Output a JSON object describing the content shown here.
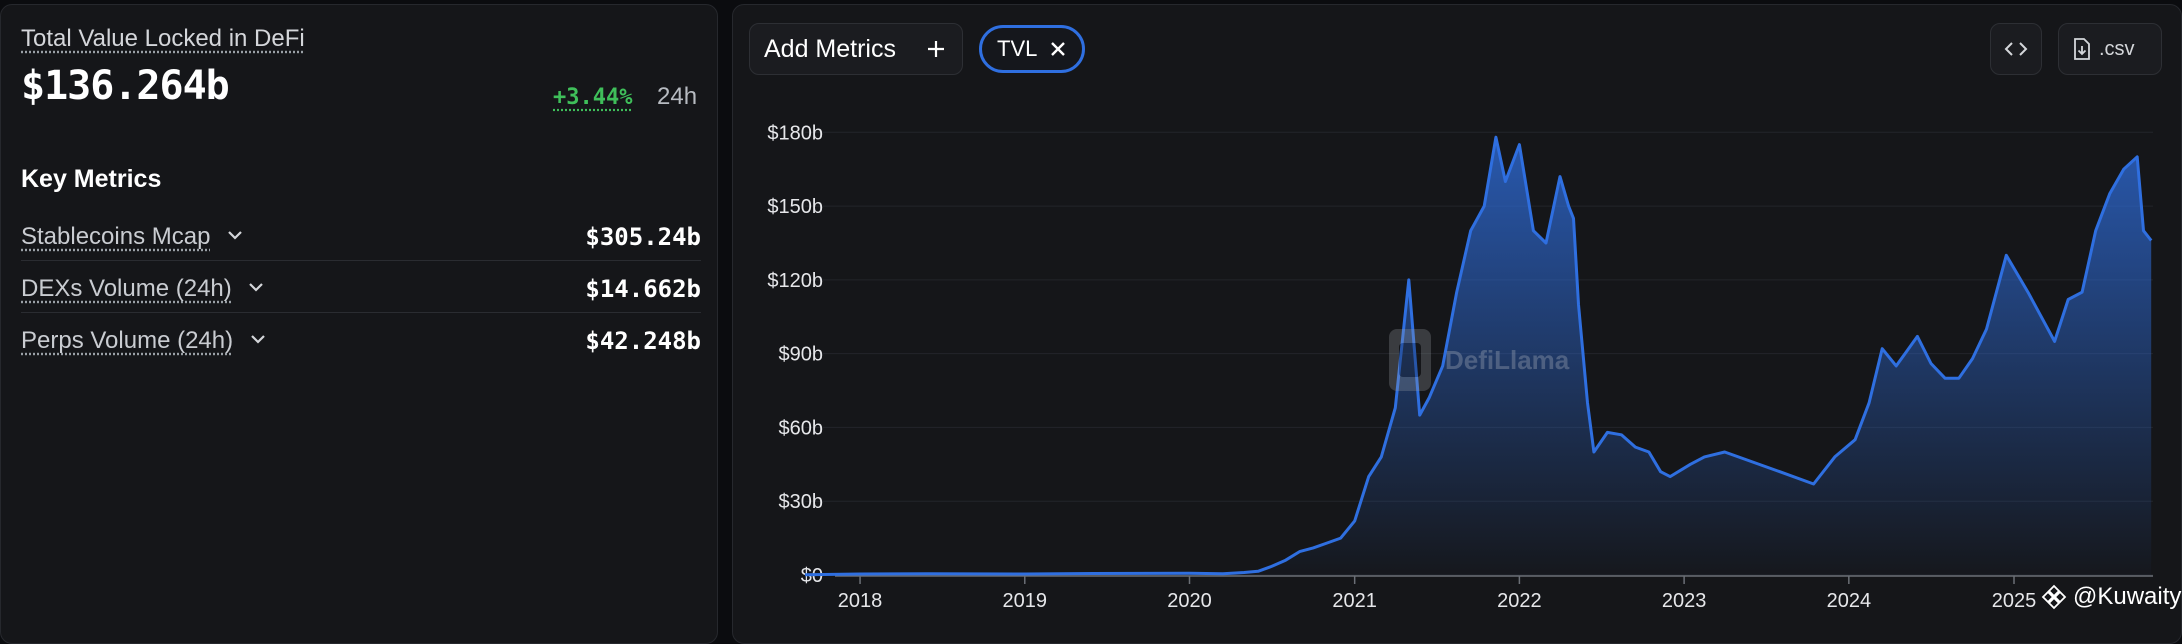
{
  "overview": {
    "title": "Total Value Locked in DeFi",
    "value": "$136.264b",
    "change": "+3.44%",
    "period": "24h"
  },
  "key_metrics": {
    "title": "Key Metrics",
    "items": [
      {
        "label": "Stablecoins Mcap",
        "value": "$305.24b"
      },
      {
        "label": "DEXs Volume (24h)",
        "value": "$14.662b"
      },
      {
        "label": "Perps Volume (24h)",
        "value": "$42.248b"
      }
    ]
  },
  "toolbar": {
    "add_metrics_label": "Add Metrics",
    "chip_label": "TVL",
    "csv_label": ".csv"
  },
  "watermark": "DefiLlama",
  "credit": "@Kuwaity",
  "colors": {
    "line": "#2f6fe0",
    "positive": "#3fbf5a",
    "panel": "#151619"
  },
  "chart_data": {
    "type": "area",
    "series": [
      {
        "values": [
          [
            "2017-09-01",
            0.1
          ],
          [
            "2018-01-01",
            0.4
          ],
          [
            "2018-06-01",
            0.5
          ],
          [
            "2019-01-01",
            0.4
          ],
          [
            "2019-06-01",
            0.6
          ],
          [
            "2020-01-01",
            0.7
          ],
          [
            "2020-03-15",
            0.5
          ],
          [
            "2020-05-01",
            1.0
          ],
          [
            "2020-06-01",
            1.5
          ],
          [
            "2020-07-01",
            3.5
          ],
          [
            "2020-08-01",
            6.0
          ],
          [
            "2020-09-01",
            9.5
          ],
          [
            "2020-10-01",
            11.0
          ],
          [
            "2020-11-01",
            13.0
          ],
          [
            "2020-12-01",
            15.0
          ],
          [
            "2021-01-01",
            22.0
          ],
          [
            "2021-02-01",
            40.0
          ],
          [
            "2021-03-01",
            48.0
          ],
          [
            "2021-04-01",
            68.0
          ],
          [
            "2021-05-01",
            120.0
          ],
          [
            "2021-05-25",
            65.0
          ],
          [
            "2021-06-15",
            72.0
          ],
          [
            "2021-07-15",
            85.0
          ],
          [
            "2021-08-15",
            115.0
          ],
          [
            "2021-09-15",
            140.0
          ],
          [
            "2021-10-15",
            150.0
          ],
          [
            "2021-11-10",
            178.0
          ],
          [
            "2021-12-01",
            160.0
          ],
          [
            "2022-01-01",
            175.0
          ],
          [
            "2022-02-01",
            140.0
          ],
          [
            "2022-03-01",
            135.0
          ],
          [
            "2022-04-01",
            162.0
          ],
          [
            "2022-04-20",
            150.0
          ],
          [
            "2022-05-01",
            145.0
          ],
          [
            "2022-05-12",
            110.0
          ],
          [
            "2022-06-01",
            70.0
          ],
          [
            "2022-06-15",
            50.0
          ],
          [
            "2022-07-15",
            58.0
          ],
          [
            "2022-08-15",
            57.0
          ],
          [
            "2022-09-15",
            52.0
          ],
          [
            "2022-10-15",
            50.0
          ],
          [
            "2022-11-10",
            42.0
          ],
          [
            "2022-12-01",
            40.0
          ],
          [
            "2023-01-15",
            45.0
          ],
          [
            "2023-02-15",
            48.0
          ],
          [
            "2023-04-01",
            50.0
          ],
          [
            "2023-06-01",
            46.0
          ],
          [
            "2023-08-01",
            42.0
          ],
          [
            "2023-10-15",
            37.0
          ],
          [
            "2023-12-01",
            48.0
          ],
          [
            "2024-01-15",
            55.0
          ],
          [
            "2024-02-15",
            70.0
          ],
          [
            "2024-03-15",
            92.0
          ],
          [
            "2024-04-15",
            85.0
          ],
          [
            "2024-06-01",
            97.0
          ],
          [
            "2024-07-01",
            86.0
          ],
          [
            "2024-08-01",
            80.0
          ],
          [
            "2024-09-01",
            80.0
          ],
          [
            "2024-10-01",
            88.0
          ],
          [
            "2024-11-01",
            100.0
          ],
          [
            "2024-12-15",
            130.0
          ],
          [
            "2025-02-01",
            115.0
          ],
          [
            "2025-04-01",
            95.0
          ],
          [
            "2025-05-01",
            112.0
          ],
          [
            "2025-06-01",
            115.0
          ],
          [
            "2025-07-01",
            140.0
          ],
          [
            "2025-08-01",
            155.0
          ],
          [
            "2025-09-01",
            165.0
          ],
          [
            "2025-10-01",
            170.0
          ],
          [
            "2025-10-15",
            140.0
          ],
          [
            "2025-11-01",
            136.0
          ]
        ]
      }
    ],
    "y_ticks": [
      "$180b",
      "$150b",
      "$120b",
      "$90b",
      "$60b",
      "$30b",
      "$0"
    ],
    "y_tick_values": [
      180,
      150,
      120,
      90,
      60,
      30,
      0
    ],
    "x_ticks": [
      "2018",
      "2019",
      "2020",
      "2021",
      "2022",
      "2023",
      "2024",
      "2025"
    ],
    "xlim": [
      "2017-09-01",
      "2025-11-05"
    ],
    "ylim": [
      0,
      185
    ],
    "grid": true
  }
}
